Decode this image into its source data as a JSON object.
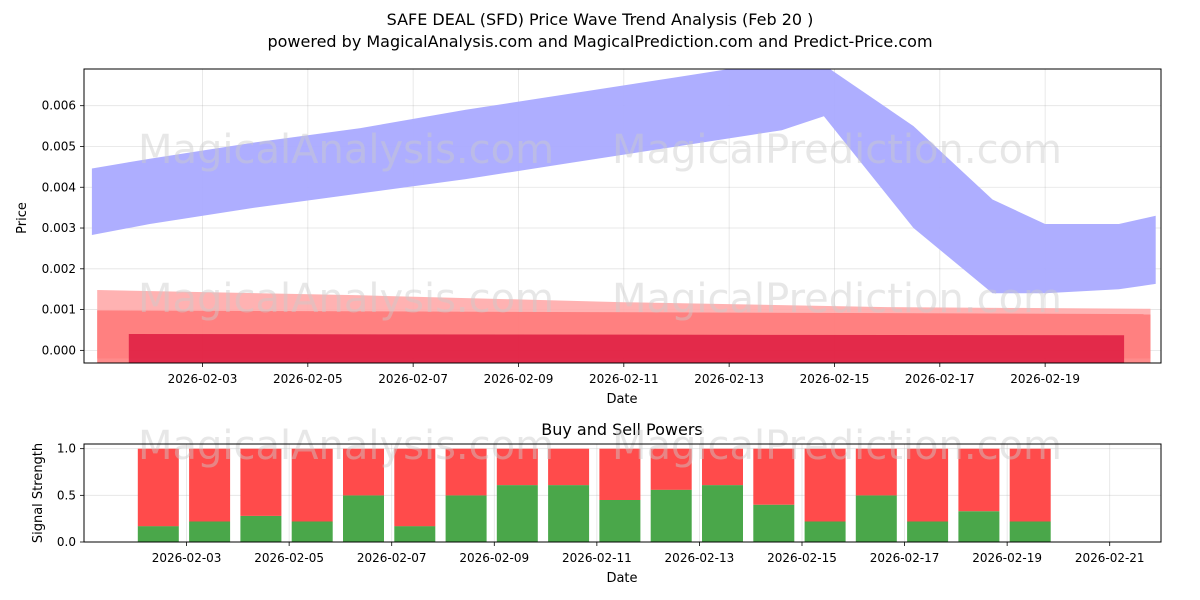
{
  "title_line1": "SAFE DEAL (SFD) Price Wave Trend Analysis (Feb 20 )",
  "title_line2": "powered by MagicalAnalysis.com and MagicalPrediction.com and Predict-Price.com",
  "watermarks": [
    "MagicalAnalysis.com",
    "MagicalPrediction.com"
  ],
  "colors": {
    "blue_band": "#aaaaff",
    "light_red_band": "#ffaaaa",
    "mid_red_band": "#ff7777",
    "dark_red_band": "#dc143c",
    "buy": "#4aa74a",
    "sell": "#ff4b4b"
  },
  "chart_data": [
    {
      "type": "area",
      "title": "",
      "xlabel": "Date",
      "ylabel": "Price",
      "x_tick_labels": [
        "2026-02-03",
        "2026-02-05",
        "2026-02-07",
        "2026-02-09",
        "2026-02-11",
        "2026-02-13",
        "2026-02-15",
        "2026-02-17",
        "2026-02-19"
      ],
      "x_tick_days": [
        3,
        5,
        7,
        9,
        11,
        13,
        15,
        17,
        19
      ],
      "xlim_days": [
        0.75,
        21.2
      ],
      "y_tick_labels": [
        "0.000",
        "0.001",
        "0.002",
        "0.003",
        "0.004",
        "0.005",
        "0.006"
      ],
      "y_ticks": [
        0,
        0.001,
        0.002,
        0.003,
        0.004,
        0.005,
        0.006
      ],
      "ylim": [
        -0.00031,
        0.0069
      ],
      "grid": true,
      "series": [
        {
          "name": "price wave (blue band)",
          "x_days": [
            0.9,
            2.0,
            4.0,
            6.0,
            8.0,
            10.0,
            12.0,
            14.0,
            14.8,
            16.5,
            18.0,
            19.0,
            20.4,
            21.1
          ],
          "upper": [
            0.00446,
            0.0047,
            0.0051,
            0.00545,
            0.0059,
            0.0063,
            0.0067,
            0.0071,
            0.007,
            0.0055,
            0.0037,
            0.0031,
            0.0031,
            0.0033
          ],
          "lower": [
            0.00283,
            0.0031,
            0.0035,
            0.00385,
            0.0042,
            0.0046,
            0.005,
            0.0054,
            0.00574,
            0.003,
            0.0014,
            0.0014,
            0.0015,
            0.00163
          ]
        },
        {
          "name": "light red band",
          "x_days": [
            1.0,
            6.0,
            11.0,
            16.0,
            21.0
          ],
          "upper": [
            0.00148,
            0.00135,
            0.00118,
            0.00106,
            0.00102
          ],
          "lower": [
            -0.0002,
            -0.0002,
            -0.0002,
            -0.0002,
            -0.0002
          ]
        },
        {
          "name": "mid red band",
          "x_days": [
            1.0,
            21.0
          ],
          "upper": [
            0.00098,
            0.00089
          ],
          "lower": [
            -0.0003,
            -0.0003
          ]
        },
        {
          "name": "dark red band",
          "x_days": [
            1.6,
            20.5
          ],
          "upper": [
            0.0004,
            0.00037
          ],
          "lower": [
            -0.00031,
            -0.00031
          ]
        }
      ]
    },
    {
      "type": "bar",
      "title": "Buy and Sell Powers",
      "xlabel": "Date",
      "ylabel": "Signal Strength",
      "x_tick_labels": [
        "2026-02-03",
        "2026-02-05",
        "2026-02-07",
        "2026-02-09",
        "2026-02-11",
        "2026-02-13",
        "2026-02-15",
        "2026-02-17",
        "2026-02-19",
        "2026-02-21"
      ],
      "x_tick_days": [
        3,
        5,
        7,
        9,
        11,
        13,
        15,
        17,
        19,
        21
      ],
      "xlim_days": [
        1.0,
        22.0
      ],
      "y_tick_labels": [
        "0.0",
        "0.5",
        "1.0"
      ],
      "y_ticks": [
        0,
        0.5,
        1.0
      ],
      "ylim": [
        0,
        1.05
      ],
      "grid": true,
      "categories": [
        "2026-02-02",
        "2026-02-03",
        "2026-02-04",
        "2026-02-05",
        "2026-02-06",
        "2026-02-07",
        "2026-02-08",
        "2026-02-09",
        "2026-02-10",
        "2026-02-11",
        "2026-02-12",
        "2026-02-13",
        "2026-02-14",
        "2026-02-15",
        "2026-02-16",
        "2026-02-17",
        "2026-02-18",
        "2026-02-19"
      ],
      "x_days": [
        2.45,
        3.45,
        4.45,
        5.45,
        6.45,
        7.45,
        8.45,
        9.45,
        10.45,
        11.45,
        12.45,
        13.45,
        14.45,
        15.45,
        16.45,
        17.45,
        18.45,
        19.45
      ],
      "series": [
        {
          "name": "Buy",
          "values": [
            0.17,
            0.22,
            0.28,
            0.22,
            0.5,
            0.17,
            0.5,
            0.61,
            0.61,
            0.45,
            0.56,
            0.61,
            0.4,
            0.22,
            0.5,
            0.22,
            0.33,
            0.22
          ]
        },
        {
          "name": "Sell",
          "values": [
            0.83,
            0.78,
            0.72,
            0.78,
            0.5,
            0.83,
            0.5,
            0.39,
            0.39,
            0.55,
            0.44,
            0.39,
            0.6,
            0.78,
            0.5,
            0.78,
            0.67,
            0.78
          ]
        }
      ]
    }
  ]
}
